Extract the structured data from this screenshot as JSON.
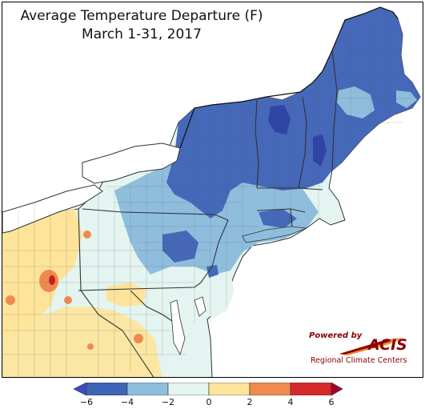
{
  "title": "Average Temperature Departure (F)",
  "subtitle": "March 1-31, 2017",
  "logo": {
    "powered_by": "Powered by",
    "brand": "ACIS",
    "subtitle": "Regional Climate Centers"
  },
  "legend": {
    "ticks": [
      "−6",
      "−4",
      "−2",
      "0",
      "2",
      "4",
      "6"
    ],
    "bins": [
      {
        "range": "below -6",
        "color": "#3b4cc0"
      },
      {
        "range": "-6 to -4",
        "color": "#3e64b5"
      },
      {
        "range": "-4 to -2",
        "color": "#8fbedd"
      },
      {
        "range": "-2 to 0",
        "color": "#e4f4f0"
      },
      {
        "range": "0 to 2",
        "color": "#fde49a"
      },
      {
        "range": "2 to 4",
        "color": "#f08b50"
      },
      {
        "range": "4 to 6",
        "color": "#d62a2a"
      },
      {
        "range": "above 6",
        "color": "#a50026"
      }
    ]
  },
  "colors": {
    "very_cold": "#2f45a6",
    "cold": "#4668b8",
    "cool": "#8fbedd",
    "near_normal": "#e4f4f0",
    "warm": "#fde49a",
    "hot": "#ef8a4f",
    "very_hot": "#c82020",
    "water": "#ffffff",
    "boundary": "#333333"
  }
}
